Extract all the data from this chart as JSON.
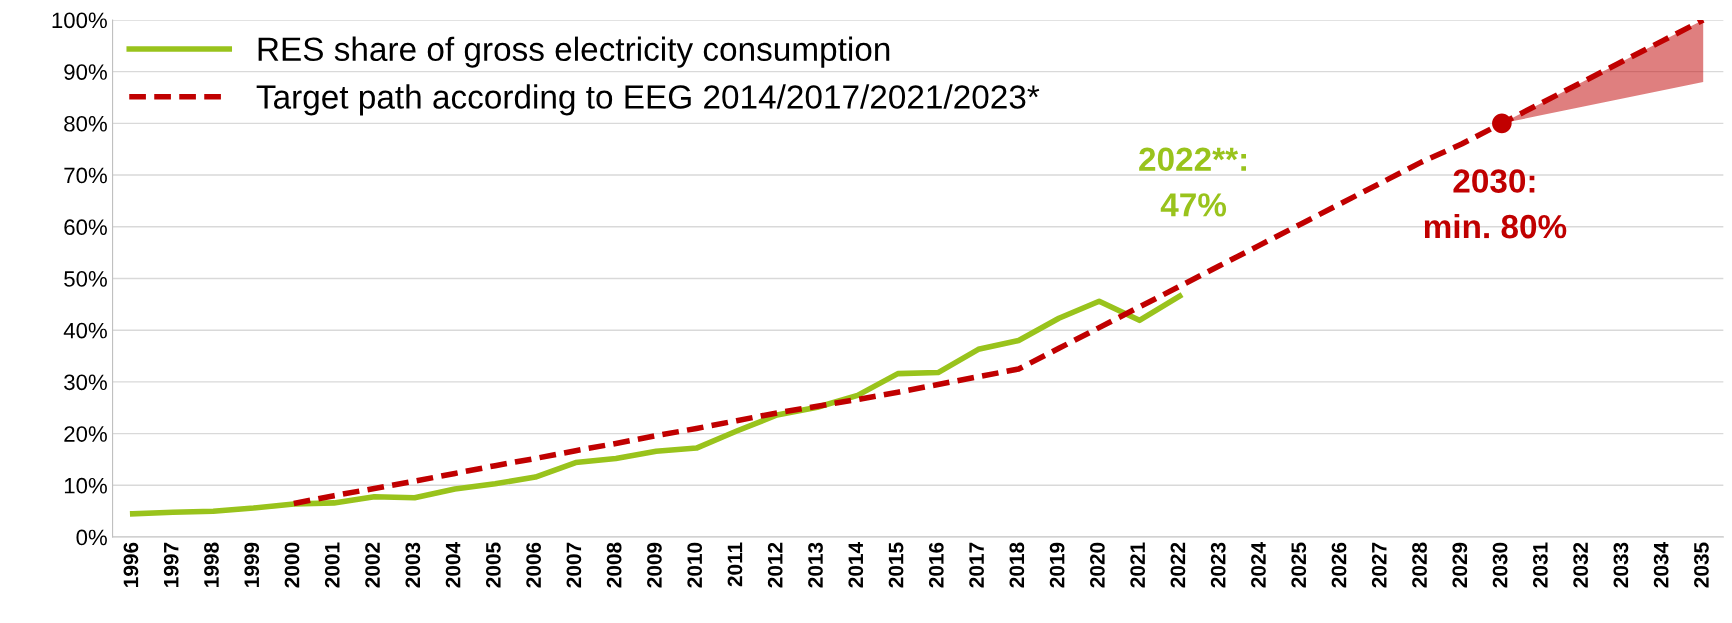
{
  "chart_data": {
    "type": "line",
    "categories": [
      "1996",
      "1997",
      "1998",
      "1999",
      "2000",
      "2001",
      "2002",
      "2003",
      "2004",
      "2005",
      "2006",
      "2007",
      "2008",
      "2009",
      "2010",
      "2011",
      "2012",
      "2013",
      "2014",
      "2015",
      "2016",
      "2017",
      "2018",
      "2019",
      "2020",
      "2021",
      "2022",
      "2023",
      "2024",
      "2025",
      "2026",
      "2027",
      "2028",
      "2029",
      "2030",
      "2031",
      "2032",
      "2033",
      "2034",
      "2035"
    ],
    "series": [
      {
        "name": "RES share of gross electricity consumption",
        "color": "#99c31c",
        "line_style": "solid",
        "values": [
          4.5,
          4.8,
          5.0,
          5.6,
          6.4,
          6.6,
          7.8,
          7.6,
          9.3,
          10.3,
          11.6,
          14.4,
          15.2,
          16.6,
          17.2,
          20.5,
          23.6,
          25.1,
          27.4,
          31.6,
          31.8,
          36.3,
          38.0,
          42.3,
          45.6,
          41.9,
          46.6,
          null,
          null,
          null,
          null,
          null,
          null,
          null,
          null,
          null,
          null,
          null,
          null,
          null
        ]
      },
      {
        "name": "Target path according to EEG 2014/2017/2021/2023*",
        "color": "#c00000",
        "line_style": "dashed",
        "values": [
          null,
          null,
          null,
          null,
          6.5,
          8.0,
          9.4,
          10.8,
          12.3,
          13.8,
          15.2,
          16.7,
          18.1,
          19.6,
          21.0,
          22.5,
          24.0,
          25.3,
          26.6,
          28.0,
          29.5,
          31.0,
          32.5,
          36.5,
          40.5,
          44.5,
          48.5,
          52.5,
          56.5,
          60.5,
          64.5,
          68.5,
          72.5,
          76.0,
          80.0,
          84.0,
          88.0,
          92.0,
          96.0,
          100.0
        ],
        "lower": [
          null,
          null,
          null,
          null,
          null,
          null,
          null,
          null,
          null,
          null,
          null,
          null,
          null,
          null,
          null,
          null,
          null,
          null,
          null,
          null,
          null,
          null,
          null,
          null,
          null,
          null,
          null,
          null,
          null,
          null,
          null,
          null,
          null,
          null,
          80.0,
          81.6,
          83.2,
          84.8,
          86.4,
          88.0
        ],
        "upper": [
          null,
          null,
          null,
          null,
          null,
          null,
          null,
          null,
          null,
          null,
          null,
          null,
          null,
          null,
          null,
          null,
          null,
          null,
          null,
          null,
          null,
          null,
          null,
          null,
          null,
          null,
          null,
          null,
          null,
          null,
          null,
          null,
          null,
          null,
          80.0,
          84.0,
          88.0,
          92.0,
          96.0,
          100.0
        ]
      },
      {
        "type": "scatter",
        "color": "#c10000",
        "marker": "circle",
        "values": [
          null,
          null,
          null,
          null,
          null,
          null,
          null,
          null,
          null,
          null,
          null,
          null,
          null,
          null,
          null,
          null,
          null,
          null,
          null,
          null,
          null,
          null,
          null,
          null,
          null,
          null,
          null,
          null,
          null,
          null,
          null,
          null,
          null,
          null,
          80.0,
          null,
          null,
          null,
          null,
          null
        ]
      }
    ],
    "ylim": [
      0,
      100
    ],
    "yticks": [
      {
        "value": 0,
        "label": "0%"
      },
      {
        "value": 10,
        "label": "10%"
      },
      {
        "value": 20,
        "label": "20%"
      },
      {
        "value": 30,
        "label": "30%"
      },
      {
        "value": 40,
        "label": "40%"
      },
      {
        "value": 50,
        "label": "50%"
      },
      {
        "value": 60,
        "label": "60%"
      },
      {
        "value": 70,
        "label": "70%"
      },
      {
        "value": 80,
        "label": "80%"
      },
      {
        "value": 90,
        "label": "90%"
      },
      {
        "value": 100,
        "label": "100%"
      }
    ],
    "grid": "y",
    "legend": "top left",
    "annotations": [
      {
        "text": "2022**:\n47%",
        "x": "2022",
        "y": 46.6
      },
      {
        "text": "2030:\nmin. 80%",
        "x": "2030",
        "y": 80.0
      }
    ]
  }
}
